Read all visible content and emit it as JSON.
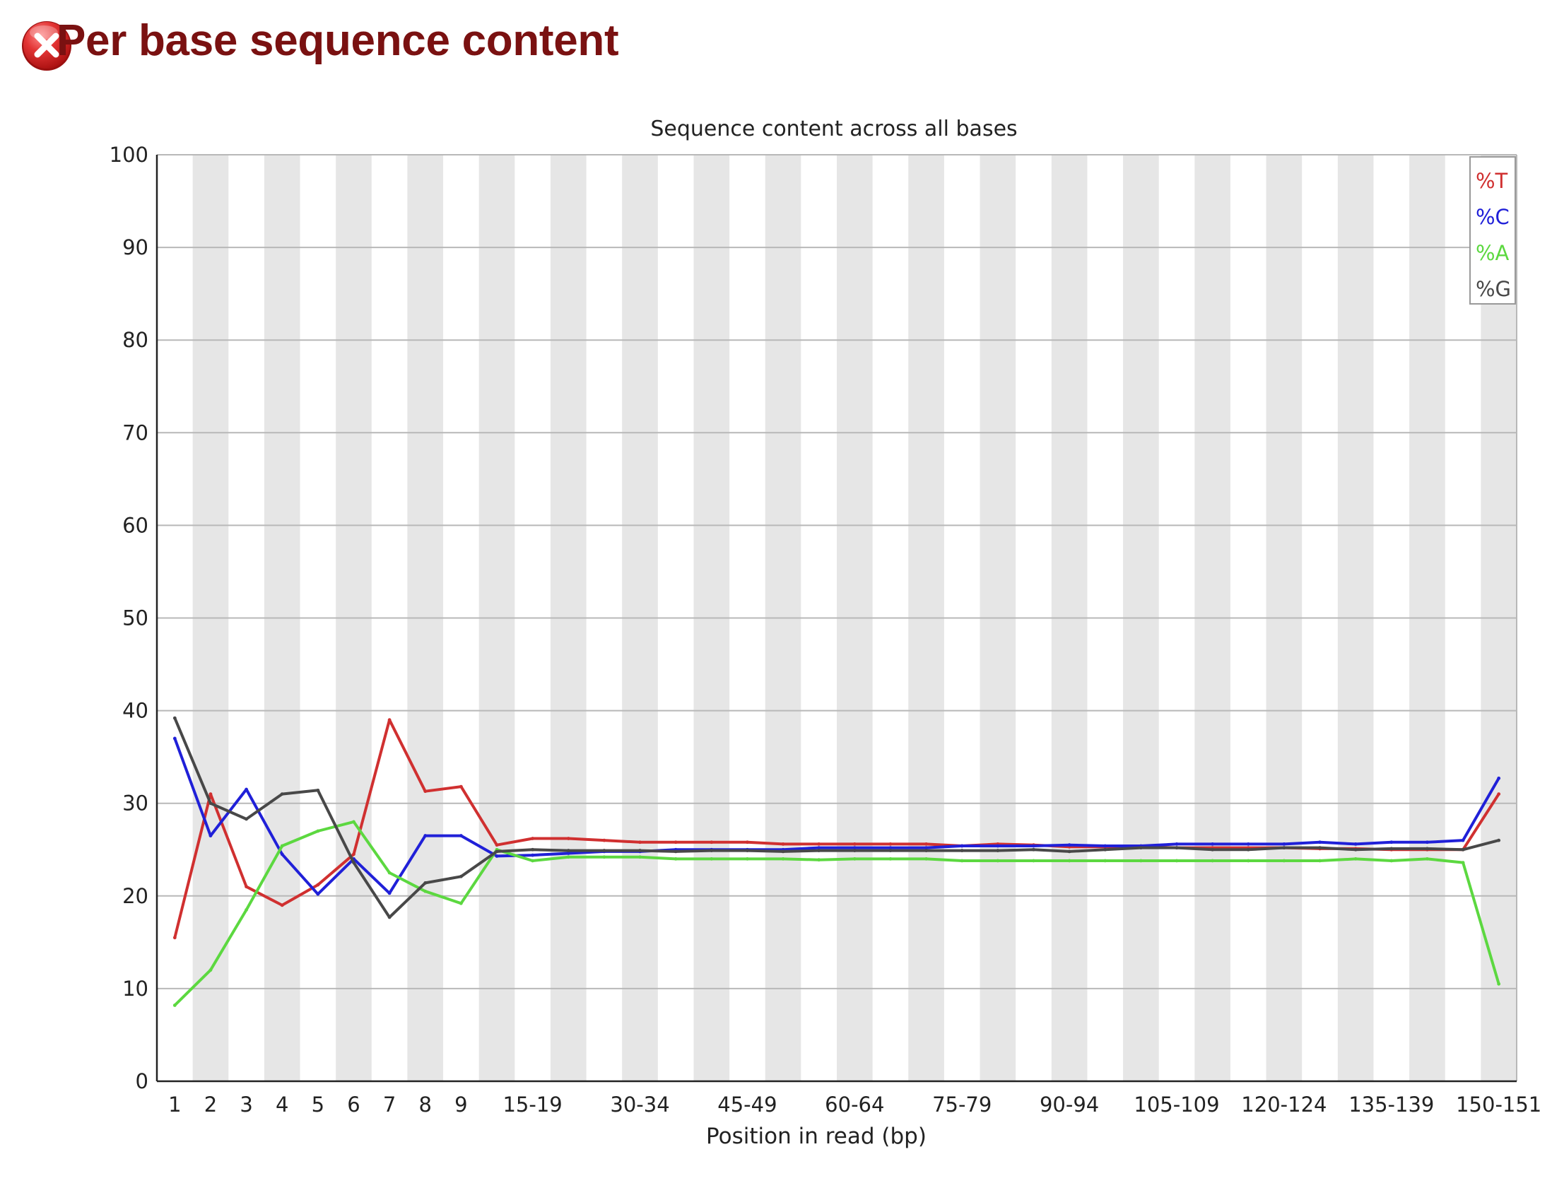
{
  "page": {
    "title": "Per base sequence content",
    "status_icon": "error-x-icon",
    "status_color": "#d42424"
  },
  "chart_data": {
    "type": "line",
    "title": "Sequence content across all bases",
    "xlabel": "Position in read (bp)",
    "ylabel": "",
    "ylim": [
      0,
      100
    ],
    "yticks": [
      0,
      10,
      20,
      30,
      40,
      50,
      60,
      70,
      80,
      90,
      100
    ],
    "grid": true,
    "legend_position": "top-right",
    "categories": [
      "1",
      "2",
      "3",
      "4",
      "5",
      "6",
      "7",
      "8",
      "9",
      "10-14",
      "15-19",
      "20-24",
      "25-29",
      "30-34",
      "35-39",
      "40-44",
      "45-49",
      "50-54",
      "55-59",
      "60-64",
      "65-69",
      "70-74",
      "75-79",
      "80-84",
      "85-89",
      "90-94",
      "95-99",
      "100-104",
      "105-109",
      "110-114",
      "115-119",
      "120-124",
      "125-129",
      "130-134",
      "135-139",
      "140-144",
      "145-149",
      "150-151"
    ],
    "category_labels": [
      "1",
      "2",
      "3",
      "4",
      "5",
      "6",
      "7",
      "8",
      "9",
      "",
      "15-19",
      "",
      "",
      "30-34",
      "",
      "",
      "45-49",
      "",
      "",
      "60-64",
      "",
      "",
      "75-79",
      "",
      "",
      "90-94",
      "",
      "",
      "105-109",
      "",
      "",
      "120-124",
      "",
      "",
      "135-139",
      "",
      "",
      "150-151"
    ],
    "series": [
      {
        "name": "%T",
        "color": "#d03030",
        "values": [
          15.5,
          31,
          21,
          19,
          21.2,
          24.5,
          39,
          31.3,
          31.8,
          25.5,
          26.2,
          26.2,
          26.0,
          25.8,
          25.8,
          25.8,
          25.8,
          25.6,
          25.6,
          25.6,
          25.6,
          25.6,
          25.4,
          25.6,
          25.5,
          25.3,
          25.3,
          25.3,
          25.2,
          25.2,
          25.2,
          25.2,
          25.1,
          25.1,
          25.0,
          25.0,
          25.0,
          31.0
        ]
      },
      {
        "name": "%C",
        "color": "#2020d8",
        "values": [
          37,
          26.5,
          31.5,
          24.5,
          20.2,
          24,
          20.3,
          26.5,
          26.5,
          24.3,
          24.4,
          24.6,
          24.8,
          24.8,
          25.0,
          25.0,
          25.0,
          25.0,
          25.2,
          25.2,
          25.2,
          25.2,
          25.4,
          25.4,
          25.4,
          25.5,
          25.4,
          25.4,
          25.6,
          25.6,
          25.6,
          25.6,
          25.8,
          25.6,
          25.8,
          25.8,
          26.0,
          32.7
        ]
      },
      {
        "name": "%A",
        "color": "#5cd840",
        "values": [
          8.2,
          12,
          18.5,
          25.4,
          27,
          28,
          22.5,
          20.5,
          19.2,
          25,
          23.8,
          24.2,
          24.2,
          24.2,
          24.0,
          24.0,
          24.0,
          24.0,
          23.9,
          24.0,
          24.0,
          24.0,
          23.8,
          23.8,
          23.8,
          23.8,
          23.8,
          23.8,
          23.8,
          23.8,
          23.8,
          23.8,
          23.8,
          24.0,
          23.8,
          24.0,
          23.6,
          10.5
        ]
      },
      {
        "name": "%G",
        "color": "#484848",
        "values": [
          39.2,
          30,
          28.3,
          31,
          31.4,
          23.6,
          17.7,
          21.4,
          22.1,
          24.8,
          25.0,
          24.9,
          24.9,
          24.9,
          24.8,
          24.9,
          24.9,
          24.8,
          24.9,
          24.9,
          24.9,
          24.9,
          24.9,
          24.9,
          25.0,
          24.8,
          25.0,
          25.2,
          25.2,
          25.0,
          25.0,
          25.2,
          25.2,
          25.0,
          25.1,
          25.1,
          25.0,
          26.0
        ]
      }
    ]
  }
}
